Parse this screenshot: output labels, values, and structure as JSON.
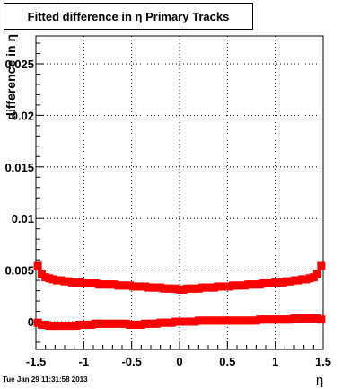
{
  "chart_data": {
    "type": "scatter",
    "title": "Fitted difference in η  Primary Tracks",
    "xlabel": "η",
    "ylabel": "difference in η",
    "xlim": [
      -1.5,
      1.5
    ],
    "ylim": [
      -0.0027,
      0.0277
    ],
    "x_ticks": [
      -1.5,
      -1,
      -0.5,
      0,
      0.5,
      1,
      1.5
    ],
    "x_tick_labels": [
      "-1.5",
      "-1",
      "-0.5",
      "0",
      "0.5",
      "1",
      "1.5"
    ],
    "y_ticks": [
      0,
      0.005,
      0.01,
      0.015,
      0.02,
      0.025
    ],
    "y_tick_labels": [
      "0",
      "0.005",
      "0.01",
      "0.015",
      "0.02",
      "0.025"
    ],
    "grid": true,
    "marker_color": "#ff0000",
    "series": [
      {
        "x": [
          -1.48,
          -1.44,
          -1.4,
          -1.36,
          -1.32,
          -1.28,
          -1.24,
          -1.2,
          -1.16,
          -1.12,
          -1.08,
          -1.04,
          -1.0,
          -0.96,
          -0.92,
          -0.88,
          -0.84,
          -0.8,
          -0.76,
          -0.72,
          -0.68,
          -0.64,
          -0.6,
          -0.56,
          -0.52,
          -0.48,
          -0.44,
          -0.4,
          -0.36,
          -0.32,
          -0.28,
          -0.24,
          -0.2,
          -0.16,
          -0.12,
          -0.08,
          -0.04,
          0.0,
          0.04,
          0.08,
          0.12,
          0.16,
          0.2,
          0.24,
          0.28,
          0.32,
          0.36,
          0.4,
          0.44,
          0.48,
          0.52,
          0.56,
          0.6,
          0.64,
          0.68,
          0.72,
          0.76,
          0.8,
          0.84,
          0.88,
          0.92,
          0.96,
          1.0,
          1.04,
          1.08,
          1.12,
          1.16,
          1.2,
          1.24,
          1.28,
          1.32,
          1.36,
          1.4,
          1.44,
          1.48
        ],
        "y": [
          0.0054,
          0.0046,
          0.0043,
          0.0042,
          0.0041,
          0.004,
          0.004,
          0.0039,
          0.0039,
          0.0038,
          0.0038,
          0.0038,
          0.0037,
          0.0037,
          0.0037,
          0.0037,
          0.0036,
          0.0036,
          0.0036,
          0.0036,
          0.0036,
          0.0035,
          0.0035,
          0.0035,
          0.0035,
          0.0034,
          0.0034,
          0.0034,
          0.0034,
          0.0033,
          0.0033,
          0.0033,
          0.0033,
          0.0032,
          0.0032,
          0.0032,
          0.0032,
          0.0031,
          0.0031,
          0.0032,
          0.0032,
          0.0032,
          0.0032,
          0.0033,
          0.0033,
          0.0033,
          0.0033,
          0.0034,
          0.0034,
          0.0034,
          0.0034,
          0.0035,
          0.0035,
          0.0035,
          0.0035,
          0.0036,
          0.0036,
          0.0036,
          0.0036,
          0.0037,
          0.0037,
          0.0037,
          0.0038,
          0.0038,
          0.0038,
          0.0039,
          0.0039,
          0.004,
          0.004,
          0.0041,
          0.0041,
          0.0042,
          0.0043,
          0.0046,
          0.0054
        ]
      },
      {
        "x": [
          -1.48,
          -1.44,
          -1.4,
          -1.36,
          -1.32,
          -1.28,
          -1.24,
          -1.2,
          -1.16,
          -1.12,
          -1.08,
          -1.04,
          -1.0,
          -0.96,
          -0.92,
          -0.88,
          -0.84,
          -0.8,
          -0.76,
          -0.72,
          -0.68,
          -0.64,
          -0.6,
          -0.56,
          -0.52,
          -0.48,
          -0.44,
          -0.4,
          -0.36,
          -0.32,
          -0.28,
          -0.24,
          -0.2,
          -0.16,
          -0.12,
          -0.08,
          -0.04,
          0.0,
          0.04,
          0.08,
          0.12,
          0.16,
          0.2,
          0.24,
          0.28,
          0.32,
          0.36,
          0.4,
          0.44,
          0.48,
          0.52,
          0.56,
          0.6,
          0.64,
          0.68,
          0.72,
          0.76,
          0.8,
          0.84,
          0.88,
          0.92,
          0.96,
          1.0,
          1.04,
          1.08,
          1.12,
          1.16,
          1.2,
          1.24,
          1.28,
          1.32,
          1.36,
          1.4,
          1.44,
          1.48
        ],
        "y": [
          -0.0001,
          -0.0003,
          -0.0003,
          -0.0004,
          -0.0004,
          -0.0004,
          -0.0004,
          -0.0004,
          -0.0004,
          -0.0004,
          -0.0004,
          -0.0003,
          -0.0003,
          -0.0003,
          -0.0003,
          -0.0002,
          -0.0002,
          -0.0002,
          -0.0002,
          -0.0002,
          -0.0002,
          -0.0002,
          -0.0002,
          -0.0002,
          -0.0003,
          -0.0003,
          -0.0003,
          -0.0003,
          -0.0002,
          -0.0002,
          -0.0002,
          -0.0002,
          -0.0001,
          -0.0001,
          -0.0001,
          -0.0001,
          0.0,
          0.0,
          0.0,
          0.0,
          0.0,
          0.0,
          0.0001,
          0.0001,
          0.0001,
          0.0001,
          0.0001,
          0.0001,
          0.0001,
          0.0001,
          0.0001,
          0.0001,
          0.0001,
          0.0001,
          0.0001,
          0.0001,
          0.0001,
          0.0001,
          0.0002,
          0.0002,
          0.0002,
          0.0002,
          0.0002,
          0.0002,
          0.0002,
          0.0002,
          0.0002,
          0.0003,
          0.0003,
          0.0003,
          0.0003,
          0.0003,
          0.0003,
          0.0003,
          0.0002
        ]
      }
    ]
  },
  "timestamp": "Tue Jan 29 11:31:58 2013"
}
